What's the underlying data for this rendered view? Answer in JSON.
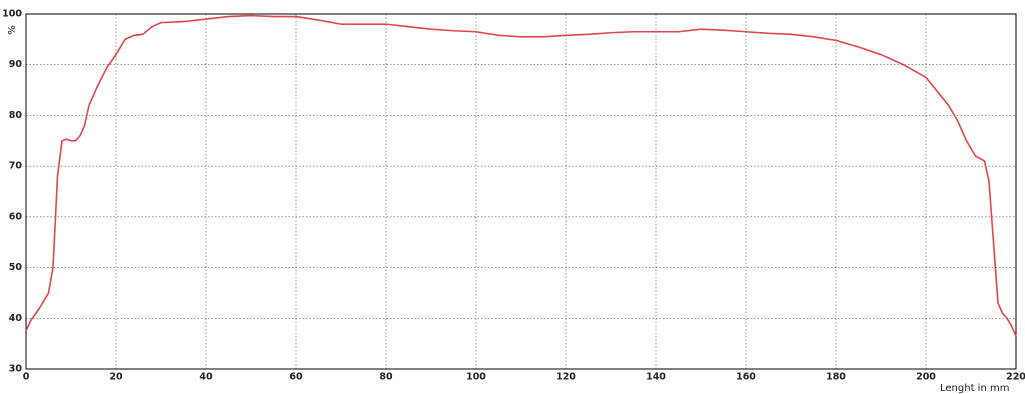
{
  "chart_data": {
    "type": "line",
    "y_label": "%",
    "x_label": "Lenght in mm",
    "x": [
      0,
      1,
      3,
      5,
      6,
      7,
      8,
      9,
      10,
      11,
      12,
      13,
      14,
      16,
      18,
      20,
      22,
      24,
      26,
      28,
      30,
      35,
      40,
      45,
      50,
      55,
      60,
      65,
      70,
      75,
      80,
      85,
      90,
      95,
      100,
      105,
      110,
      115,
      120,
      125,
      130,
      135,
      140,
      145,
      150,
      155,
      160,
      165,
      170,
      175,
      180,
      185,
      190,
      195,
      200,
      205,
      207,
      209,
      211,
      213,
      214,
      215,
      216,
      217,
      218,
      219,
      220
    ],
    "series": [
      {
        "color": "#e0474c",
        "values": [
          37.5,
          39.5,
          42,
          45,
          50,
          68,
          75,
          75.3,
          75,
          75,
          76,
          78,
          82,
          86,
          89.5,
          92,
          95,
          95.8,
          96,
          97.5,
          98.3,
          98.5,
          99,
          99.5,
          99.7,
          99.5,
          99.5,
          98.8,
          98,
          98,
          98,
          97.5,
          97,
          96.7,
          96.5,
          95.8,
          95.5,
          95.5,
          95.8,
          96,
          96.3,
          96.5,
          96.5,
          96.5,
          97,
          96.8,
          96.5,
          96.2,
          96,
          95.5,
          94.8,
          93.5,
          92,
          90,
          87.5,
          82,
          79,
          75,
          72,
          71,
          67,
          55,
          43,
          41,
          40,
          38.5,
          36.5
        ]
      }
    ],
    "xlim": [
      0,
      220
    ],
    "xticks": [
      0,
      20,
      40,
      60,
      80,
      100,
      120,
      140,
      160,
      180,
      200,
      220
    ],
    "ylim": [
      30,
      100
    ],
    "yticks": [
      30,
      40,
      50,
      60,
      70,
      80,
      90,
      100
    ],
    "grid": true
  }
}
